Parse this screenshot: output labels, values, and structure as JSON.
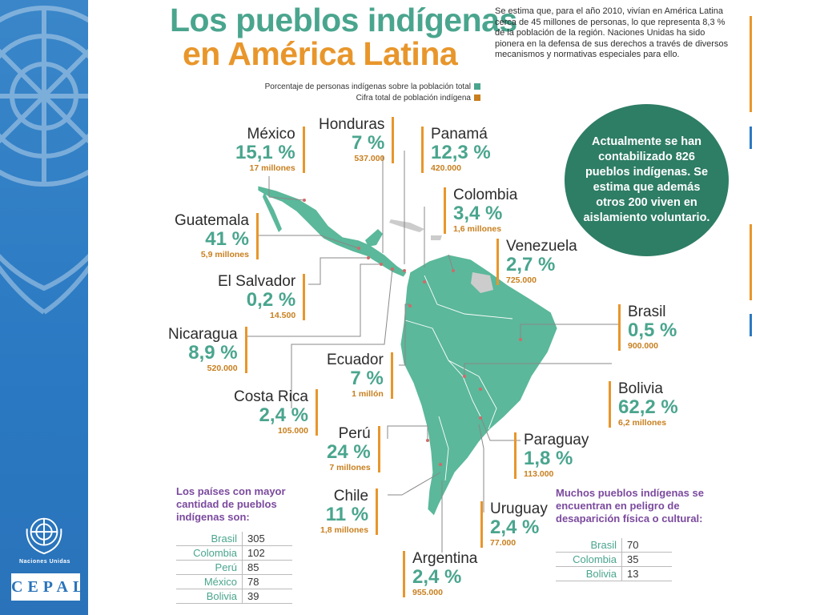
{
  "title": {
    "line1": "Los pueblos indígenas",
    "line2": "en América Latina"
  },
  "intro": "Se estima que, para el año 2010, vivían en América Latina cerca de 45 millones de personas, lo que representa 8,3 % de la población de la región. Naciones Unidas ha sido pionera en la defensa de sus derechos a través de diversos mecanismos y normativas especiales para ello.",
  "legend": {
    "pct_label": "Porcentaje de personas indígenas sobre la población total",
    "pop_label": "Cifra total de población indígena",
    "pct_color": "#4aa58e",
    "pop_color": "#c87f1e"
  },
  "circle_text": "Actualmente se han contabilizado 826 pueblos indígenas. Se estima que además otros 200 viven en aislamiento voluntario.",
  "countries": {
    "mexico": {
      "name": "México",
      "pct": "15,1 %",
      "pop": "17 millones"
    },
    "honduras": {
      "name": "Honduras",
      "pct": "7 %",
      "pop": "537.000"
    },
    "panama": {
      "name": "Panamá",
      "pct": "12,3 %",
      "pop": "420.000"
    },
    "colombia": {
      "name": "Colombia",
      "pct": "3,4 %",
      "pop": "1,6 millones"
    },
    "guatemala": {
      "name": "Guatemala",
      "pct": "41 %",
      "pop": "5,9 millones"
    },
    "venezuela": {
      "name": "Venezuela",
      "pct": "2,7 %",
      "pop": "725.000"
    },
    "el_salvador": {
      "name": "El Salvador",
      "pct": "0,2 %",
      "pop": "14.500"
    },
    "brasil": {
      "name": "Brasil",
      "pct": "0,5 %",
      "pop": "900.000"
    },
    "nicaragua": {
      "name": "Nicaragua",
      "pct": "8,9 %",
      "pop": "520.000"
    },
    "ecuador": {
      "name": "Ecuador",
      "pct": "7 %",
      "pop": "1 millón"
    },
    "bolivia": {
      "name": "Bolivia",
      "pct": "62,2 %",
      "pop": "6,2 millones"
    },
    "costa_rica": {
      "name": "Costa Rica",
      "pct": "2,4 %",
      "pop": "105.000"
    },
    "peru": {
      "name": "Perú",
      "pct": "24 %",
      "pop": "7 millones"
    },
    "paraguay": {
      "name": "Paraguay",
      "pct": "1,8 %",
      "pop": "113.000"
    },
    "chile": {
      "name": "Chile",
      "pct": "11 %",
      "pop": "1,8 millones"
    },
    "uruguay": {
      "name": "Uruguay",
      "pct": "2,4 %",
      "pop": "77.000"
    },
    "argentina": {
      "name": "Argentina",
      "pct": "2,4 %",
      "pop": "955.000"
    }
  },
  "table_most_peoples": {
    "title": "Los países con mayor cantidad de pueblos indígenas son:",
    "rows": [
      {
        "country": "Brasil",
        "count": "305"
      },
      {
        "country": "Colombia",
        "count": "102"
      },
      {
        "country": "Perú",
        "count": "85"
      },
      {
        "country": "México",
        "count": "78"
      },
      {
        "country": "Bolivia",
        "count": "39"
      }
    ]
  },
  "table_danger": {
    "title": "Muchos pueblos indígenas se encuentran en peligro de desaparición física o cultural:",
    "rows": [
      {
        "country": "Brasil",
        "count": "70"
      },
      {
        "country": "Colombia",
        "count": "35"
      },
      {
        "country": "Bolivia",
        "count": "13"
      }
    ]
  },
  "branding": {
    "un_label": "Naciones Unidas",
    "cepal": "CEPAL"
  },
  "colors": {
    "sidebar": "#2a79c2",
    "map": "#5bb89a",
    "map_dark": "#2e7d65",
    "accent_orange": "#e8962b",
    "purple": "#7b4a9e"
  }
}
